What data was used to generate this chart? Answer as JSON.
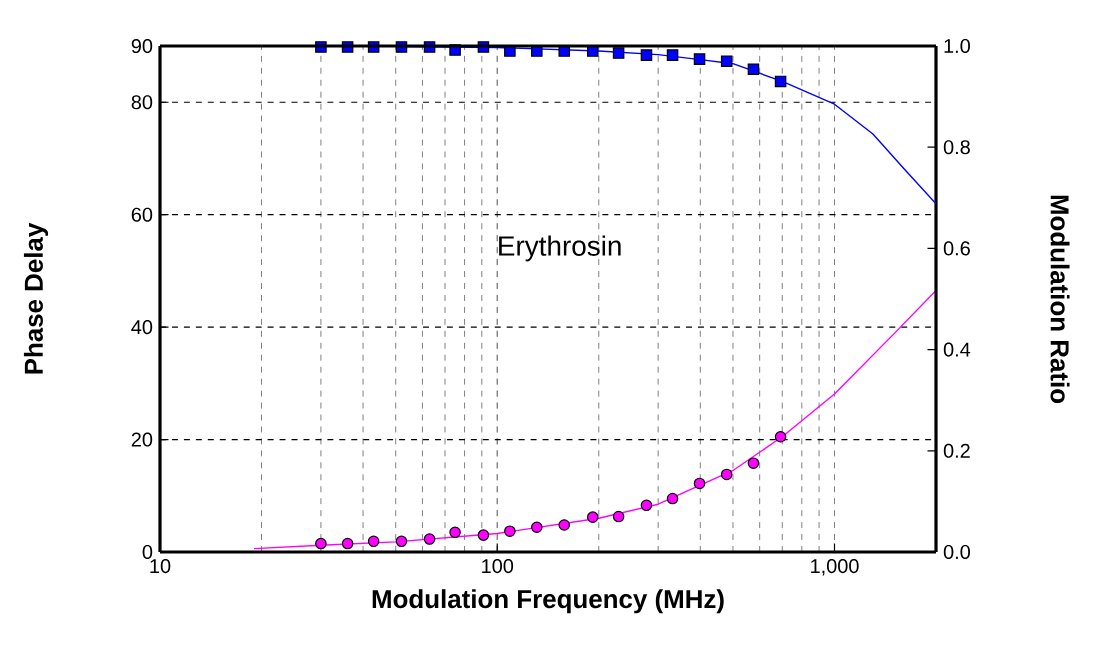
{
  "chart_data": {
    "type": "scatter",
    "xlabel": "Modulation Frequency (MHz)",
    "ylabel": "Phase Delay",
    "y2label": "Modulation Ratio",
    "annotations": [
      "Erythrosin"
    ],
    "log": "x",
    "grid": true,
    "xlim": [
      10,
      2000
    ],
    "xticks": [
      10,
      100,
      {
        "value": 1000,
        "label": "1,000"
      }
    ],
    "ylim": [
      0,
      90
    ],
    "yticks": [
      0,
      20,
      40,
      60,
      80,
      90
    ],
    "y2lim": [
      0,
      1.0
    ],
    "y2ticks": [
      {
        "value": 0,
        "label": "0.0"
      },
      {
        "value": 0.2,
        "label": "0.2"
      },
      {
        "value": 0.4,
        "label": "0.4"
      },
      {
        "value": 0.6,
        "label": "0.6"
      },
      {
        "value": 0.8,
        "label": "0.8"
      },
      {
        "value": 1.0,
        "label": "1.0"
      }
    ],
    "series": [
      {
        "axis": "y2",
        "color": "#0000ff",
        "marker": "square",
        "x": [
          30,
          36,
          43,
          52,
          63,
          75,
          91,
          109,
          131,
          158,
          192,
          229,
          277,
          331,
          398,
          479,
          575,
          692
        ],
        "values": [
          0.998,
          0.998,
          0.998,
          0.998,
          0.998,
          0.992,
          0.998,
          0.99,
          0.99,
          0.99,
          0.99,
          0.986,
          0.982,
          0.982,
          0.974,
          0.97,
          0.954,
          0.93
        ]
      },
      {
        "type": "line",
        "axis": "y2",
        "color": "#0000ff",
        "marker": "none",
        "x": [
          50,
          100,
          200,
          300,
          400,
          500,
          700,
          1000,
          1300,
          1600,
          2000
        ],
        "values": [
          0.999,
          0.997,
          0.99,
          0.983,
          0.973,
          0.965,
          0.93,
          0.885,
          0.826,
          0.759,
          0.688
        ]
      },
      {
        "axis": "y",
        "color": "#ff00ff",
        "marker": "circle",
        "x": [
          30,
          36,
          43,
          52,
          63,
          75,
          91,
          109,
          131,
          158,
          192,
          229,
          277,
          331,
          398,
          479,
          575,
          692
        ],
        "values": [
          1.5,
          1.5,
          1.9,
          1.9,
          2.3,
          3.5,
          3.0,
          3.7,
          4.4,
          4.8,
          6.2,
          6.3,
          8.3,
          9.5,
          12.2,
          13.8,
          15.8,
          20.5
        ]
      },
      {
        "type": "line",
        "axis": "y",
        "color": "#ff00ff",
        "marker": "none",
        "x": [
          19,
          30,
          50,
          100,
          200,
          300,
          500,
          700,
          1000,
          1500,
          2000
        ],
        "values": [
          0.6,
          1.2,
          1.8,
          3.3,
          6.0,
          8.5,
          14.5,
          20.5,
          28.1,
          38.8,
          46.5
        ]
      }
    ]
  }
}
